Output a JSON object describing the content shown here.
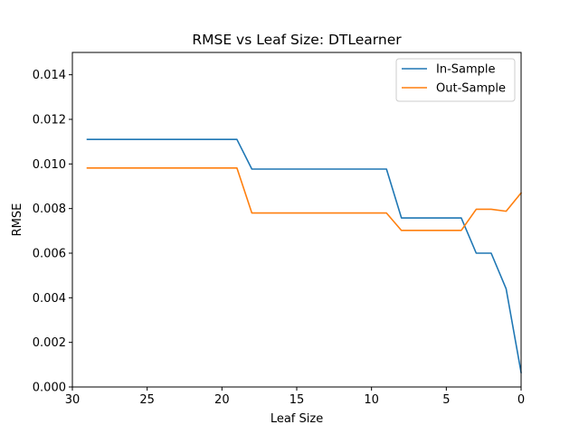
{
  "chart_data": {
    "type": "line",
    "title": "RMSE vs Leaf Size: DTLearner",
    "xlabel": "Leaf Size",
    "ylabel": "RMSE",
    "xlim": [
      30,
      0
    ],
    "ylim": [
      0,
      0.015
    ],
    "x_reversed": true,
    "xticks": [
      30,
      25,
      20,
      15,
      10,
      5,
      0
    ],
    "yticks": [
      0.0,
      0.002,
      0.004,
      0.006,
      0.008,
      0.01,
      0.012,
      0.014
    ],
    "ytick_labels": [
      "0.000",
      "0.002",
      "0.004",
      "0.006",
      "0.008",
      "0.010",
      "0.012",
      "0.014"
    ],
    "grid": false,
    "legend_position": "top-right",
    "x": [
      29,
      28,
      27,
      26,
      25,
      24,
      23,
      22,
      21,
      20,
      19,
      18,
      17,
      16,
      15,
      14,
      13,
      12,
      11,
      10,
      9,
      8,
      7,
      6,
      5,
      4,
      3,
      2,
      1,
      0
    ],
    "series": [
      {
        "name": "In-Sample",
        "color": "#1f77b4",
        "values": [
          0.0111,
          0.0111,
          0.0111,
          0.0111,
          0.0111,
          0.0111,
          0.0111,
          0.0111,
          0.0111,
          0.0111,
          0.0111,
          0.00977,
          0.00977,
          0.00977,
          0.00977,
          0.00977,
          0.00977,
          0.00977,
          0.00977,
          0.00977,
          0.00977,
          0.00758,
          0.00758,
          0.00758,
          0.00758,
          0.00758,
          0.006,
          0.006,
          0.0044,
          0.00065
        ]
      },
      {
        "name": "Out-Sample",
        "color": "#ff7f0e",
        "values": [
          0.00982,
          0.00982,
          0.00982,
          0.00982,
          0.00982,
          0.00982,
          0.00982,
          0.00982,
          0.00982,
          0.00982,
          0.00982,
          0.0078,
          0.0078,
          0.0078,
          0.0078,
          0.0078,
          0.0078,
          0.0078,
          0.0078,
          0.0078,
          0.0078,
          0.00702,
          0.00702,
          0.00702,
          0.00702,
          0.00702,
          0.00797,
          0.00797,
          0.00788,
          0.0087
        ]
      }
    ]
  }
}
